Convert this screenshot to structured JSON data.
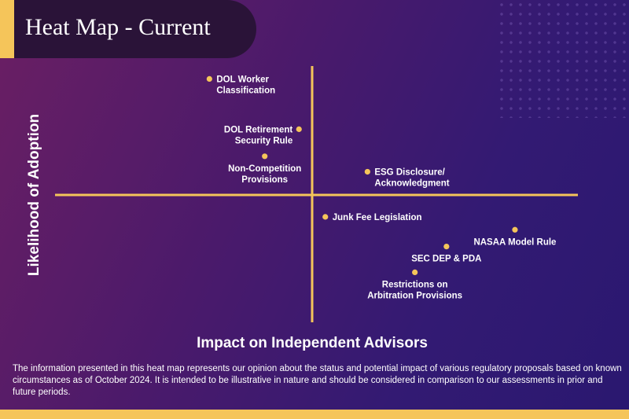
{
  "header": {
    "title": "Heat Map - Current"
  },
  "colors": {
    "accent": "#f5c55a",
    "title_bg": "#2a1338",
    "background_start": "#6b1f63",
    "background_end": "#2a1870"
  },
  "chart_data": {
    "type": "scatter",
    "title": "Heat Map - Current",
    "xlabel": "Impact on Independent Advisors",
    "ylabel": "Likelihood of Adoption",
    "xlim": [
      -1,
      1
    ],
    "ylim": [
      -1,
      1
    ],
    "quadrant_lines": true,
    "grid": false,
    "legend": "none",
    "points": [
      {
        "label": "DOL Worker Classification",
        "lines": [
          "DOL Worker",
          "Classification"
        ],
        "x": -0.39,
        "y": 0.9,
        "label_side": "right"
      },
      {
        "label": "DOL Retirement Security Rule",
        "lines": [
          "DOL Retirement",
          "Security Rule"
        ],
        "x": -0.05,
        "y": 0.51,
        "label_side": "left"
      },
      {
        "label": "Non-Competition Provisions",
        "lines": [
          "Non-Competition",
          "Provisions"
        ],
        "x": -0.18,
        "y": 0.3,
        "label_side": "below"
      },
      {
        "label": "ESG Disclosure/ Acknowledgment",
        "lines": [
          "ESG Disclosure/",
          "Acknowledgment"
        ],
        "x": 0.21,
        "y": 0.18,
        "label_side": "right"
      },
      {
        "label": "Junk Fee Legislation",
        "lines": [
          "Junk Fee Legislation"
        ],
        "x": 0.05,
        "y": -0.17,
        "label_side": "right"
      },
      {
        "label": "NASAA Model Rule",
        "lines": [
          "NASAA Model Rule"
        ],
        "x": 0.77,
        "y": -0.27,
        "label_side": "below"
      },
      {
        "label": "SEC DEP & PDA",
        "lines": [
          "SEC DEP & PDA"
        ],
        "x": 0.51,
        "y": -0.4,
        "label_side": "below"
      },
      {
        "label": "Restrictions on Arbitration Provisions",
        "lines": [
          "Restrictions on",
          "Arbitration Provisions"
        ],
        "x": 0.39,
        "y": -0.6,
        "label_side": "below"
      }
    ]
  },
  "disclaimer": "The information presented in this heat map represents our opinion about the status and potential impact of various regulatory proposals based on known circumstances as of October 2024.  It is intended to be illustrative in nature and should be considered in comparison to our assessments in prior and future periods."
}
